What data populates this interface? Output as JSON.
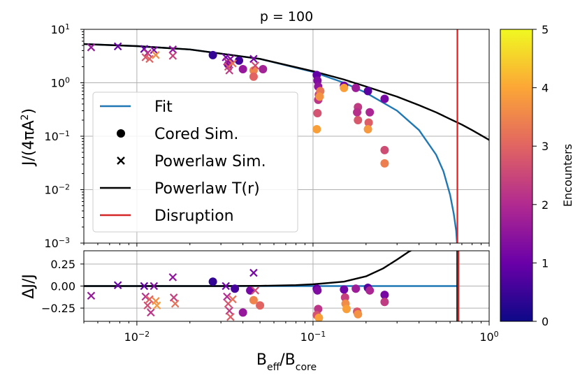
{
  "chart_data": {
    "title": "p = 100",
    "type": "scatter",
    "xlabel": "B_eff/B_core",
    "x_scale": "log",
    "xlim": [
      0.005,
      1.0
    ],
    "x_ticks": [
      0.01,
      0.1,
      1.0
    ],
    "x_tick_labels": [
      [
        "10",
        "−2"
      ],
      [
        "10",
        "−1"
      ],
      [
        "10",
        "0"
      ]
    ],
    "disruption_x": 0.66,
    "colorbar": {
      "label": "Encounters",
      "cmap": "plasma",
      "range": [
        0,
        5
      ],
      "ticks": [
        "0",
        "1",
        "2",
        "3",
        "4",
        "5"
      ],
      "stops": [
        "#0d0887",
        "#6a00a8",
        "#b12a90",
        "#e16462",
        "#fca636",
        "#f0f921"
      ]
    },
    "panels": [
      {
        "id": "main",
        "ylabel": "J/(4πA²)",
        "y_scale": "log",
        "ylim": [
          0.001,
          10
        ],
        "y_ticks": [
          0.001,
          0.01,
          0.1,
          1,
          10
        ],
        "y_tick_labels": [
          [
            "10",
            "−3"
          ],
          [
            "10",
            "−2"
          ],
          [
            "10",
            "−1"
          ],
          [
            "10",
            "0"
          ],
          [
            "10",
            "1"
          ]
        ],
        "legend": {
          "placement": "lower-left",
          "entries": [
            {
              "label": "Fit",
              "kind": "line",
              "color": "#1f77b4"
            },
            {
              "label": "Cored Sim.",
              "kind": "circle",
              "color": "#000000"
            },
            {
              "label": "Powerlaw Sim.",
              "kind": "cross",
              "color": "#000000"
            },
            {
              "label": "Powerlaw T(r)",
              "kind": "line",
              "color": "#000000"
            },
            {
              "label": "Disruption",
              "kind": "line",
              "color": "#d62728"
            }
          ]
        },
        "lines": [
          {
            "name": "Fit",
            "color": "#1f77b4",
            "x": [
              0.005,
              0.01,
              0.02,
              0.05,
              0.1,
              0.15,
              0.2,
              0.3,
              0.4,
              0.5,
              0.55,
              0.6,
              0.63,
              0.65,
              0.657
            ],
            "y": [
              5.3,
              4.85,
              4.2,
              2.8,
              1.6,
              1.0,
              0.65,
              0.3,
              0.13,
              0.045,
              0.022,
              0.008,
              0.0035,
              0.0017,
              0.001
            ]
          },
          {
            "name": "Powerlaw T(r)",
            "color": "#000000",
            "x": [
              0.005,
              0.01,
              0.02,
              0.05,
              0.1,
              0.15,
              0.2,
              0.3,
              0.4,
              0.5,
              0.6,
              0.7,
              0.8,
              0.9,
              1.0
            ],
            "y": [
              5.3,
              4.85,
              4.2,
              2.8,
              1.65,
              1.15,
              0.85,
              0.55,
              0.38,
              0.28,
              0.21,
              0.165,
              0.13,
              0.104,
              0.085
            ]
          }
        ],
        "cored": [
          {
            "x": 0.027,
            "y": 3.3,
            "c": 0.4
          },
          {
            "x": 0.033,
            "y": 2.2,
            "c": 1.2
          },
          {
            "x": 0.038,
            "y": 2.6,
            "c": 0.6
          },
          {
            "x": 0.04,
            "y": 1.8,
            "c": 1.6
          },
          {
            "x": 0.046,
            "y": 1.7,
            "c": 3.5
          },
          {
            "x": 0.046,
            "y": 1.3,
            "c": 3.0
          },
          {
            "x": 0.052,
            "y": 1.8,
            "c": 1.8
          },
          {
            "x": 0.105,
            "y": 1.4,
            "c": 0.9
          },
          {
            "x": 0.106,
            "y": 1.1,
            "c": 1.3
          },
          {
            "x": 0.107,
            "y": 0.85,
            "c": 1.5
          },
          {
            "x": 0.108,
            "y": 0.6,
            "c": 2.4
          },
          {
            "x": 0.107,
            "y": 0.48,
            "c": 2.2
          },
          {
            "x": 0.106,
            "y": 0.27,
            "c": 2.7
          },
          {
            "x": 0.105,
            "y": 0.135,
            "c": 3.9
          },
          {
            "x": 0.11,
            "y": 0.7,
            "c": 3.3
          },
          {
            "x": 0.109,
            "y": 0.55,
            "c": 3.7
          },
          {
            "x": 0.15,
            "y": 0.88,
            "c": 1.1
          },
          {
            "x": 0.15,
            "y": 0.8,
            "c": 3.9
          },
          {
            "x": 0.175,
            "y": 0.8,
            "c": 1.7
          },
          {
            "x": 0.18,
            "y": 0.35,
            "c": 2.3
          },
          {
            "x": 0.178,
            "y": 0.28,
            "c": 2.1
          },
          {
            "x": 0.18,
            "y": 0.2,
            "c": 2.8
          },
          {
            "x": 0.205,
            "y": 0.7,
            "c": 0.8
          },
          {
            "x": 0.21,
            "y": 0.28,
            "c": 1.9
          },
          {
            "x": 0.207,
            "y": 0.18,
            "c": 2.9
          },
          {
            "x": 0.205,
            "y": 0.135,
            "c": 3.8
          },
          {
            "x": 0.255,
            "y": 0.5,
            "c": 1.2
          },
          {
            "x": 0.255,
            "y": 0.055,
            "c": 2.6
          },
          {
            "x": 0.255,
            "y": 0.031,
            "c": 3.4
          }
        ],
        "powerlaw": [
          {
            "x": 0.0055,
            "y": 4.6,
            "c": 1.6
          },
          {
            "x": 0.0078,
            "y": 4.8,
            "c": 1.0
          },
          {
            "x": 0.011,
            "y": 4.3,
            "c": 0.9
          },
          {
            "x": 0.0115,
            "y": 3.6,
            "c": 2.1
          },
          {
            "x": 0.0112,
            "y": 3.0,
            "c": 2.8
          },
          {
            "x": 0.0118,
            "y": 2.8,
            "c": 3.0
          },
          {
            "x": 0.0125,
            "y": 4.1,
            "c": 1.3
          },
          {
            "x": 0.0128,
            "y": 3.3,
            "c": 3.6
          },
          {
            "x": 0.016,
            "y": 4.2,
            "c": 1.5
          },
          {
            "x": 0.016,
            "y": 3.2,
            "c": 2.4
          },
          {
            "x": 0.032,
            "y": 3.0,
            "c": 1.1
          },
          {
            "x": 0.0325,
            "y": 2.5,
            "c": 2.0
          },
          {
            "x": 0.033,
            "y": 2.0,
            "c": 2.7
          },
          {
            "x": 0.034,
            "y": 2.8,
            "c": 1.4
          },
          {
            "x": 0.035,
            "y": 2.3,
            "c": 3.2
          },
          {
            "x": 0.0335,
            "y": 1.7,
            "c": 2.3
          },
          {
            "x": 0.046,
            "y": 2.8,
            "c": 1.2
          },
          {
            "x": 0.047,
            "y": 2.1,
            "c": 2.6
          }
        ]
      },
      {
        "id": "residual",
        "ylabel": "ΔJ/J",
        "y_scale": "linear",
        "ylim": [
          -0.4,
          0.4
        ],
        "y_ticks": [
          -0.25,
          0.0,
          0.25
        ],
        "y_tick_labels": [
          "−0.25",
          "0.00",
          "0.25"
        ],
        "lines": [
          {
            "name": "Fit",
            "color": "#1f77b4",
            "x": [
              0.005,
              0.66
            ],
            "y": [
              0.0,
              0.0
            ]
          },
          {
            "name": "Powerlaw T(r)",
            "color": "#000000",
            "x": [
              0.005,
              0.03,
              0.05,
              0.08,
              0.1,
              0.15,
              0.2,
              0.25,
              0.3,
              0.35,
              0.4
            ],
            "y": [
              0.0,
              0.0,
              0.002,
              0.01,
              0.02,
              0.05,
              0.11,
              0.2,
              0.3,
              0.39,
              0.45
            ]
          }
        ],
        "cored": [
          {
            "x": 0.027,
            "y": 0.05,
            "c": 0.4
          },
          {
            "x": 0.036,
            "y": -0.03,
            "c": 0.6
          },
          {
            "x": 0.04,
            "y": -0.3,
            "c": 1.6
          },
          {
            "x": 0.044,
            "y": -0.05,
            "c": 1.2
          },
          {
            "x": 0.046,
            "y": -0.16,
            "c": 3.5
          },
          {
            "x": 0.05,
            "y": -0.22,
            "c": 3.0
          },
          {
            "x": 0.105,
            "y": -0.03,
            "c": 0.9
          },
          {
            "x": 0.106,
            "y": -0.05,
            "c": 1.3
          },
          {
            "x": 0.107,
            "y": -0.26,
            "c": 2.2
          },
          {
            "x": 0.105,
            "y": -0.33,
            "c": 2.7
          },
          {
            "x": 0.108,
            "y": -0.36,
            "c": 3.9
          },
          {
            "x": 0.15,
            "y": -0.04,
            "c": 1.1
          },
          {
            "x": 0.152,
            "y": -0.13,
            "c": 2.4
          },
          {
            "x": 0.153,
            "y": -0.2,
            "c": 3.6
          },
          {
            "x": 0.155,
            "y": -0.26,
            "c": 3.9
          },
          {
            "x": 0.175,
            "y": -0.03,
            "c": 1.7
          },
          {
            "x": 0.178,
            "y": -0.29,
            "c": 2.8
          },
          {
            "x": 0.18,
            "y": -0.32,
            "c": 3.7
          },
          {
            "x": 0.205,
            "y": -0.02,
            "c": 0.8
          },
          {
            "x": 0.21,
            "y": -0.05,
            "c": 1.9
          },
          {
            "x": 0.255,
            "y": -0.1,
            "c": 1.2
          },
          {
            "x": 0.255,
            "y": -0.18,
            "c": 2.3
          }
        ],
        "powerlaw": [
          {
            "x": 0.0055,
            "y": -0.11,
            "c": 1.6
          },
          {
            "x": 0.0078,
            "y": 0.01,
            "c": 1.0
          },
          {
            "x": 0.011,
            "y": 0.0,
            "c": 0.9
          },
          {
            "x": 0.0112,
            "y": -0.12,
            "c": 2.1
          },
          {
            "x": 0.0115,
            "y": -0.22,
            "c": 2.6
          },
          {
            "x": 0.0118,
            "y": -0.15,
            "c": 3.0
          },
          {
            "x": 0.012,
            "y": -0.3,
            "c": 2.2
          },
          {
            "x": 0.0125,
            "y": 0.0,
            "c": 1.3
          },
          {
            "x": 0.0128,
            "y": -0.17,
            "c": 3.6
          },
          {
            "x": 0.013,
            "y": -0.22,
            "c": 3.8
          },
          {
            "x": 0.016,
            "y": 0.1,
            "c": 1.5
          },
          {
            "x": 0.0162,
            "y": -0.13,
            "c": 2.4
          },
          {
            "x": 0.0165,
            "y": -0.2,
            "c": 3.2
          },
          {
            "x": 0.032,
            "y": 0.0,
            "c": 1.1
          },
          {
            "x": 0.0325,
            "y": -0.12,
            "c": 2.0
          },
          {
            "x": 0.033,
            "y": -0.2,
            "c": 2.7
          },
          {
            "x": 0.0335,
            "y": -0.28,
            "c": 2.3
          },
          {
            "x": 0.034,
            "y": -0.35,
            "c": 2.9
          },
          {
            "x": 0.035,
            "y": -0.15,
            "c": 3.2
          },
          {
            "x": 0.046,
            "y": 0.15,
            "c": 1.2
          },
          {
            "x": 0.047,
            "y": -0.05,
            "c": 2.6
          }
        ]
      }
    ]
  }
}
